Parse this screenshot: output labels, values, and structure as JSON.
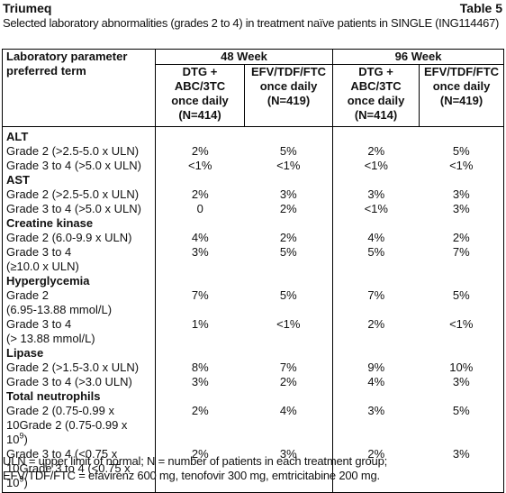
{
  "header": {
    "title": "Triumeq",
    "table_number": "Table 5",
    "subtitle": "Selected laboratory abnormalities (grades 2 to 4) in treatment naïve patients in SINGLE (ING114467)"
  },
  "table": {
    "corner": [
      "Laboratory parameter",
      "preferred term"
    ],
    "groups": [
      "48 Week",
      "96 Week"
    ],
    "columns": [
      [
        "DTG +",
        "ABC/3TC",
        "once daily",
        "(N=414)"
      ],
      [
        "EFV/TDF/FTC",
        "once daily",
        "(N=419)"
      ],
      [
        "DTG +",
        "ABC/3TC",
        "once daily",
        "(N=414)"
      ],
      [
        "EFV/TDF/FTC",
        "once daily",
        "(N=419)"
      ]
    ],
    "rows": [
      {
        "section": "ALT"
      },
      {
        "label": [
          "Grade 2 (>2.5-5.0 x ULN)"
        ],
        "values": [
          "2%",
          "5%",
          "2%",
          "5%"
        ]
      },
      {
        "label": [
          "Grade 3 to 4 (>5.0 x ULN)"
        ],
        "values": [
          "<1%",
          "<1%",
          "<1%",
          "<1%"
        ]
      },
      {
        "section": "AST"
      },
      {
        "label": [
          "Grade 2 (>2.5-5.0 x ULN)"
        ],
        "values": [
          "2%",
          "3%",
          "3%",
          "3%"
        ]
      },
      {
        "label": [
          "Grade 3 to 4 (>5.0 x ULN)"
        ],
        "values": [
          "0",
          "2%",
          "<1%",
          "3%"
        ]
      },
      {
        "section": "Creatine kinase"
      },
      {
        "label": [
          "Grade 2 (6.0-9.9 x ULN)"
        ],
        "values": [
          "4%",
          "2%",
          "4%",
          "2%"
        ]
      },
      {
        "label": [
          "Grade 3 to 4",
          "(≥10.0 x ULN)"
        ],
        "values": [
          "3%",
          "5%",
          "5%",
          "7%"
        ]
      },
      {
        "section": "Hyperglycemia"
      },
      {
        "label": [
          "Grade 2",
          "(6.95-13.88 mmol/L)"
        ],
        "values": [
          "7%",
          "5%",
          "7%",
          "5%"
        ]
      },
      {
        "label": [
          "Grade 3 to 4",
          "(> 13.88 mmol/L)"
        ],
        "values": [
          "1%",
          "<1%",
          "2%",
          "<1%"
        ]
      },
      {
        "section": "Lipase"
      },
      {
        "label": [
          "Grade 2 (>1.5-3.0 x ULN)"
        ],
        "values": [
          "8%",
          "7%",
          "9%",
          "10%"
        ]
      },
      {
        "label": [
          "Grade 3 to 4 (>3.0 ULN)"
        ],
        "values": [
          "3%",
          "2%",
          "4%",
          "3%"
        ]
      },
      {
        "section": "Total neutrophils"
      },
      {
        "label": [
          "Grade 2 (0.75-0.99 x 10"
        ],
        "sup": "9",
        "tail": ")",
        "values": [
          "2%",
          "4%",
          "3%",
          "5%"
        ]
      },
      {
        "label": [
          "Grade 3 to 4 (<0.75 x 10"
        ],
        "sup": "9",
        "tail": ")",
        "values": [
          "2%",
          "3%",
          "2%",
          "3%"
        ]
      }
    ]
  },
  "footnotes": [
    "ULN = upper limit of normal; N = number of patients in each treatment group;",
    "EFV/TDF/FTC = efavirenz 600 mg, tenofovir 300 mg, emtricitabine 200 mg."
  ]
}
